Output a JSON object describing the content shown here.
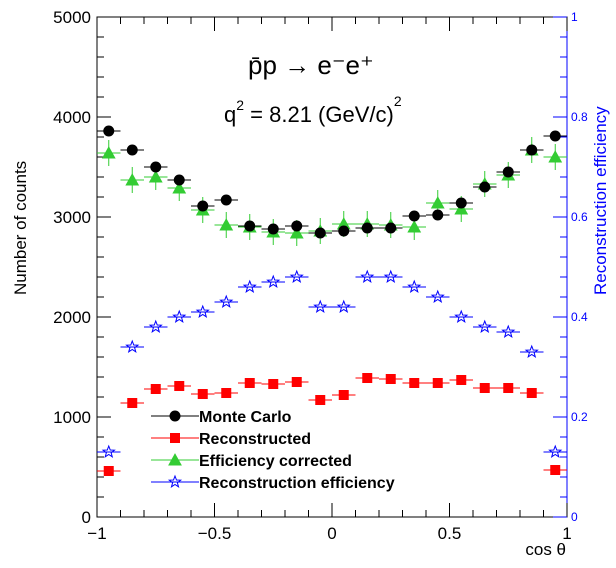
{
  "chart_data": {
    "type": "scatter",
    "xlabel": "cos θ",
    "ylabel": "Number of counts",
    "y2label": "Reconstruction efficiency",
    "xlim": [
      -1,
      1
    ],
    "ylim": [
      0,
      5000
    ],
    "y2lim": [
      0,
      1
    ],
    "grid": false,
    "legend_position": "bottom-left",
    "xticks": [
      -1,
      -0.5,
      0,
      0.5,
      1
    ],
    "xtick_labels": [
      "−1",
      "−0.5",
      "0",
      "0.5",
      "1"
    ],
    "yticks": [
      0,
      1000,
      2000,
      3000,
      4000,
      5000
    ],
    "ytick_labels": [
      "0",
      "1000",
      "2000",
      "3000",
      "4000",
      "5000"
    ],
    "y2ticks": [
      0,
      0.2,
      0.4,
      0.6,
      0.8,
      1
    ],
    "y2tick_labels": [
      "0",
      "0.2",
      "0.4",
      "0.6",
      "0.8",
      "1"
    ],
    "annotation_reaction": "p̄p → e⁻e⁺",
    "annotation_q2_prefix": "q",
    "annotation_q2_exp": "2",
    "annotation_q2_value": " = 8.21 (GeV/c)",
    "annotation_q2_unit_exp": "2",
    "x": [
      -0.95,
      -0.85,
      -0.75,
      -0.65,
      -0.55,
      -0.45,
      -0.35,
      -0.25,
      -0.15,
      -0.05,
      0.05,
      0.15,
      0.25,
      0.35,
      0.45,
      0.55,
      0.65,
      0.75,
      0.85,
      0.95
    ],
    "bin_half_width": 0.05,
    "series": [
      {
        "name": "Monte Carlo",
        "axis": "left",
        "marker": "circle",
        "color": "#000000",
        "values": [
          3860,
          3670,
          3500,
          3370,
          3110,
          3170,
          2910,
          2880,
          2910,
          2840,
          2860,
          2890,
          2890,
          3010,
          3020,
          3140,
          3300,
          3450,
          3670,
          3810
        ]
      },
      {
        "name": "Reconstructed",
        "axis": "left",
        "marker": "square",
        "color": "#ff0000",
        "values": [
          460,
          1140,
          1280,
          1310,
          1230,
          1240,
          1340,
          1330,
          1350,
          1170,
          1220,
          1390,
          1380,
          1340,
          1340,
          1370,
          1290,
          1290,
          1240,
          470
        ]
      },
      {
        "name": "Efficiency corrected",
        "axis": "left",
        "marker": "triangle",
        "color": "#33cc33",
        "values": [
          3640,
          3370,
          3400,
          3290,
          3070,
          2920,
          2900,
          2850,
          2840,
          2860,
          2930,
          2930,
          2920,
          2900,
          3140,
          3080,
          3330,
          3420,
          3670,
          3600
        ]
      },
      {
        "name": "Reconstruction efficiency",
        "axis": "right",
        "marker": "star",
        "color": "#0000ff",
        "values": [
          0.13,
          0.34,
          0.38,
          0.4,
          0.41,
          0.43,
          0.46,
          0.47,
          0.48,
          0.42,
          0.42,
          0.48,
          0.48,
          0.46,
          0.44,
          0.4,
          0.38,
          0.37,
          0.33,
          0.13
        ]
      }
    ]
  }
}
